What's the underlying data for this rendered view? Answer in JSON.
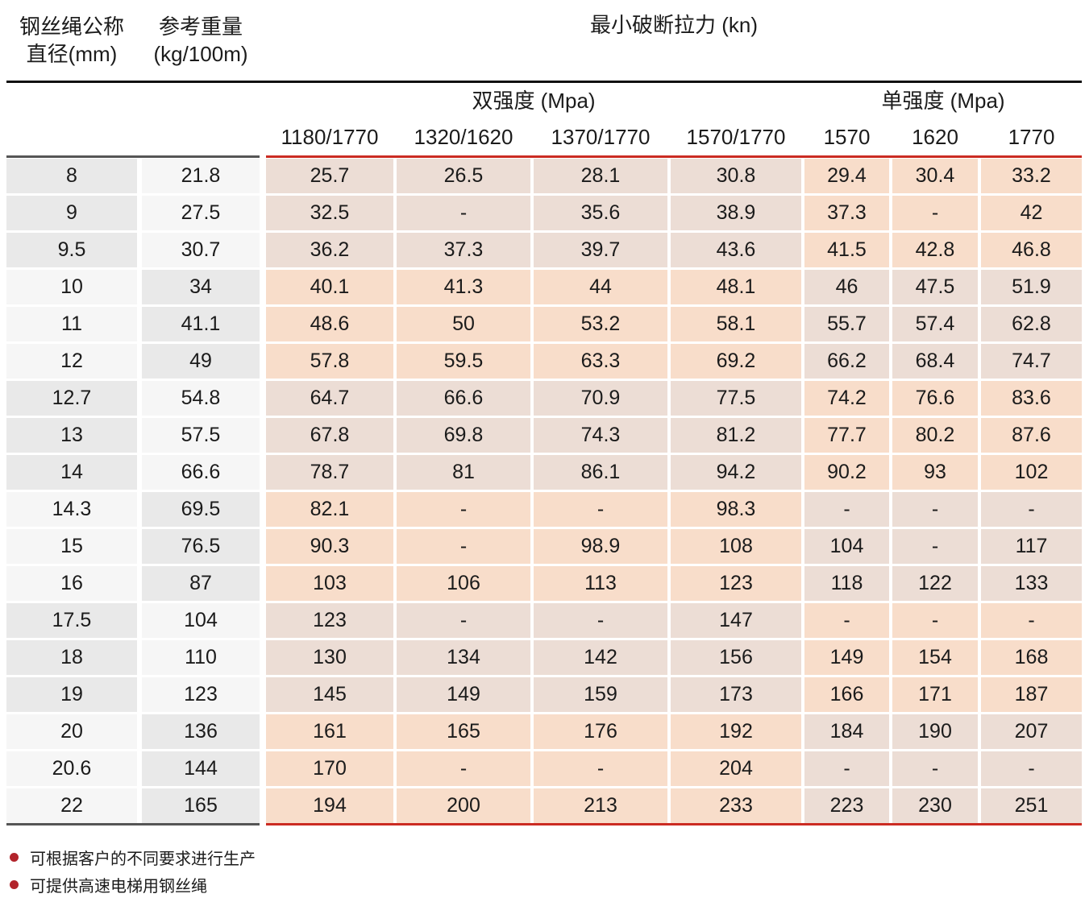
{
  "header": {
    "col_diameter_line1": "钢丝绳公称",
    "col_diameter_line2": "直径(mm)",
    "col_weight_line1": "参考重量",
    "col_weight_line2": "(kg/100m)",
    "force_title": "最小破断拉力 (kn)",
    "dual_label": "双强度 (Mpa)",
    "single_label": "单强度 (Mpa)",
    "dual_columns": [
      "1180/1770",
      "1320/1620",
      "1370/1770",
      "1570/1770"
    ],
    "single_columns": [
      "1570",
      "1620",
      "1770"
    ]
  },
  "rows": [
    {
      "diameter": "8",
      "weight": "21.8",
      "values": [
        "25.7",
        "26.5",
        "28.1",
        "30.8",
        "29.4",
        "30.4",
        "33.2"
      ]
    },
    {
      "diameter": "9",
      "weight": "27.5",
      "values": [
        "32.5",
        "-",
        "35.6",
        "38.9",
        "37.3",
        "-",
        "42"
      ]
    },
    {
      "diameter": "9.5",
      "weight": "30.7",
      "values": [
        "36.2",
        "37.3",
        "39.7",
        "43.6",
        "41.5",
        "42.8",
        "46.8"
      ]
    },
    {
      "diameter": "10",
      "weight": "34",
      "values": [
        "40.1",
        "41.3",
        "44",
        "48.1",
        "46",
        "47.5",
        "51.9"
      ]
    },
    {
      "diameter": "11",
      "weight": "41.1",
      "values": [
        "48.6",
        "50",
        "53.2",
        "58.1",
        "55.7",
        "57.4",
        "62.8"
      ]
    },
    {
      "diameter": "12",
      "weight": "49",
      "values": [
        "57.8",
        "59.5",
        "63.3",
        "69.2",
        "66.2",
        "68.4",
        "74.7"
      ]
    },
    {
      "diameter": "12.7",
      "weight": "54.8",
      "values": [
        "64.7",
        "66.6",
        "70.9",
        "77.5",
        "74.2",
        "76.6",
        "83.6"
      ]
    },
    {
      "diameter": "13",
      "weight": "57.5",
      "values": [
        "67.8",
        "69.8",
        "74.3",
        "81.2",
        "77.7",
        "80.2",
        "87.6"
      ]
    },
    {
      "diameter": "14",
      "weight": "66.6",
      "values": [
        "78.7",
        "81",
        "86.1",
        "94.2",
        "90.2",
        "93",
        "102"
      ]
    },
    {
      "diameter": "14.3",
      "weight": "69.5",
      "values": [
        "82.1",
        "-",
        "-",
        "98.3",
        "-",
        "-",
        "-"
      ]
    },
    {
      "diameter": "15",
      "weight": "76.5",
      "values": [
        "90.3",
        "-",
        "98.9",
        "108",
        "104",
        "-",
        "117"
      ]
    },
    {
      "diameter": "16",
      "weight": "87",
      "values": [
        "103",
        "106",
        "113",
        "123",
        "118",
        "122",
        "133"
      ]
    },
    {
      "diameter": "17.5",
      "weight": "104",
      "values": [
        "123",
        "-",
        "-",
        "147",
        "-",
        "-",
        "-"
      ]
    },
    {
      "diameter": "18",
      "weight": "110",
      "values": [
        "130",
        "134",
        "142",
        "156",
        "149",
        "154",
        "168"
      ]
    },
    {
      "diameter": "19",
      "weight": "123",
      "values": [
        "145",
        "149",
        "159",
        "173",
        "166",
        "171",
        "187"
      ]
    },
    {
      "diameter": "20",
      "weight": "136",
      "values": [
        "161",
        "165",
        "176",
        "192",
        "184",
        "190",
        "207"
      ]
    },
    {
      "diameter": "20.6",
      "weight": "144",
      "values": [
        "170",
        "-",
        "-",
        "204",
        "-",
        "-",
        "-"
      ]
    },
    {
      "diameter": "22",
      "weight": "165",
      "values": [
        "194",
        "200",
        "213",
        "233",
        "223",
        "230",
        "251"
      ]
    }
  ],
  "notes": [
    "可根据客户的不同要求进行生产",
    "可提供高速电梯用钢丝绳"
  ],
  "colors": {
    "cell_gray": "#e9e9e9",
    "cell_light": "#f6f6f6",
    "cell_warm": "#f8ddca",
    "cell_muted": "#ecddd5",
    "red_line": "#cb2b22",
    "bullet_red": "#b2242b"
  }
}
